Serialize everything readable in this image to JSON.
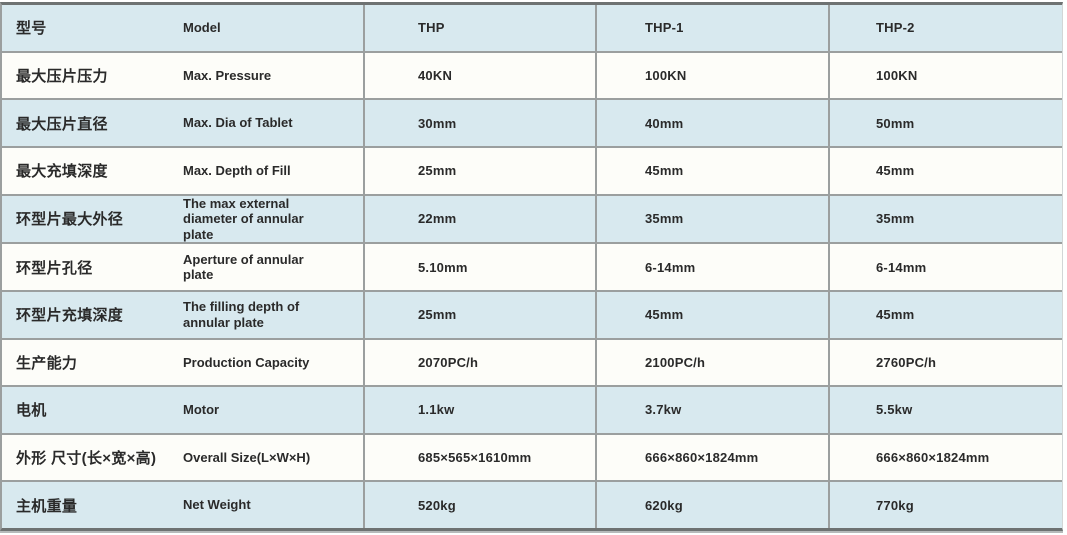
{
  "theme": {
    "row_blue": "#d8e9ef",
    "row_white": "#fdfdf9",
    "separator": "#9b9f9f",
    "border_dark": "#6e7272",
    "text": "#2a2a2a"
  },
  "table": {
    "header": {
      "cn": "型号",
      "en": "Model",
      "models": [
        "THP",
        "THP-1",
        "THP-2"
      ]
    },
    "rows": [
      {
        "cn": "最大压片压力",
        "en": "Max. Pressure",
        "thp": "40KN",
        "thp1": "100KN",
        "thp2": "100KN"
      },
      {
        "cn": "最大压片直径",
        "en": "Max. Dia of Tablet",
        "thp": "30mm",
        "thp1": "40mm",
        "thp2": "50mm"
      },
      {
        "cn": "最大充填深度",
        "en": "Max. Depth of Fill",
        "thp": "25mm",
        "thp1": "45mm",
        "thp2": "45mm"
      },
      {
        "cn": "环型片最大外径",
        "en": "The max external diameter of annular plate",
        "thp": "22mm",
        "thp1": "35mm",
        "thp2": "35mm"
      },
      {
        "cn": "环型片孔径",
        "en": "Aperture of annular plate",
        "thp": "5.10mm",
        "thp1": "6-14mm",
        "thp2": "6-14mm"
      },
      {
        "cn": "环型片充填深度",
        "en": "The filling depth of annular plate",
        "thp": "25mm",
        "thp1": "45mm",
        "thp2": "45mm"
      },
      {
        "cn": "生产能力",
        "en": "Production Capacity",
        "thp": "2070PC/h",
        "thp1": "2100PC/h",
        "thp2": "2760PC/h"
      },
      {
        "cn": "电机",
        "en": "Motor",
        "thp": "1.1kw",
        "thp1": "3.7kw",
        "thp2": "5.5kw"
      },
      {
        "cn": "外形 尺寸(长×宽×高)",
        "en": "Overall Size(L×W×H)",
        "thp": "685×565×1610mm",
        "thp1": "666×860×1824mm",
        "thp2": "666×860×1824mm"
      },
      {
        "cn": "主机重量",
        "en": "Net Weight",
        "thp": "520kg",
        "thp1": "620kg",
        "thp2": "770kg"
      }
    ]
  }
}
